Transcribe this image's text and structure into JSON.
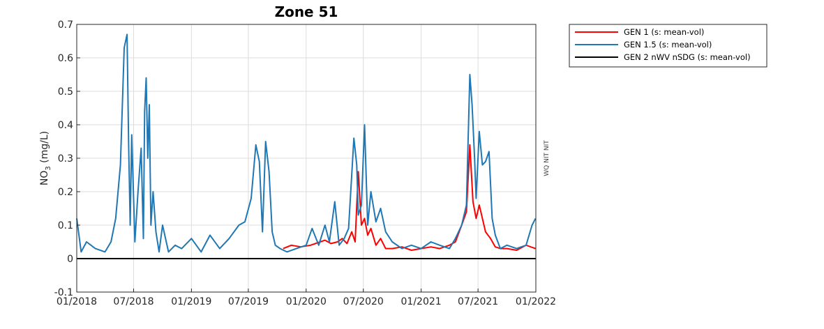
{
  "chart_data": {
    "type": "line",
    "title": "Zone 51",
    "xlabel": "",
    "ylabel_main": "NO",
    "ylabel_sub": "3",
    "ylabel_unit": " (mg/L)",
    "side_label": "WQ NIT NIT",
    "ylim": [
      -0.1,
      0.7
    ],
    "yticks": [
      -0.1,
      0,
      0.1,
      0.2,
      0.3,
      0.4,
      0.5,
      0.6,
      0.7
    ],
    "ytick_labels": [
      "-0.1",
      "0",
      "0.1",
      "0.2",
      "0.3",
      "0.4",
      "0.5",
      "0.6",
      "0.7"
    ],
    "xlim": [
      "2018-01-01",
      "2022-01-01"
    ],
    "xticks": [
      "2018-01-01",
      "2018-07-01",
      "2019-01-01",
      "2019-07-01",
      "2020-01-01",
      "2020-07-01",
      "2021-01-01",
      "2021-07-01",
      "2022-01-01"
    ],
    "xtick_labels": [
      "01/2018",
      "07/2018",
      "01/2019",
      "07/2019",
      "01/2020",
      "07/2020",
      "01/2021",
      "07/2021",
      "01/2022"
    ],
    "grid": true,
    "legend_position": "outside-top-right",
    "series": [
      {
        "name": "GEN 1 (s: mean-vol)",
        "color": "#ff0000",
        "x": [
          "2019-10-20",
          "2019-11-15",
          "2019-12-15",
          "2020-01-15",
          "2020-02-15",
          "2020-03-01",
          "2020-03-20",
          "2020-04-10",
          "2020-04-25",
          "2020-05-10",
          "2020-05-25",
          "2020-06-05",
          "2020-06-15",
          "2020-06-25",
          "2020-07-05",
          "2020-07-15",
          "2020-07-25",
          "2020-08-10",
          "2020-08-25",
          "2020-09-10",
          "2020-10-01",
          "2020-11-01",
          "2020-12-01",
          "2021-01-01",
          "2021-02-01",
          "2021-03-01",
          "2021-04-01",
          "2021-04-20",
          "2021-05-10",
          "2021-05-25",
          "2021-06-05",
          "2021-06-15",
          "2021-06-25",
          "2021-07-05",
          "2021-07-15",
          "2021-07-25",
          "2021-08-10",
          "2021-08-25",
          "2021-09-10",
          "2021-10-01",
          "2021-11-01",
          "2021-12-01",
          "2021-12-31"
        ],
        "y": [
          0.03,
          0.04,
          0.035,
          0.04,
          0.05,
          0.055,
          0.045,
          0.05,
          0.06,
          0.045,
          0.08,
          0.05,
          0.26,
          0.1,
          0.12,
          0.07,
          0.09,
          0.04,
          0.06,
          0.03,
          0.03,
          0.035,
          0.025,
          0.03,
          0.035,
          0.03,
          0.04,
          0.05,
          0.1,
          0.14,
          0.34,
          0.17,
          0.12,
          0.16,
          0.12,
          0.08,
          0.06,
          0.035,
          0.03,
          0.03,
          0.025,
          0.04,
          0.03
        ]
      },
      {
        "name": "GEN 1.5 (s: mean-vol)",
        "color": "#1f77b4",
        "x": [
          "2018-01-01",
          "2018-01-15",
          "2018-02-01",
          "2018-03-01",
          "2018-04-01",
          "2018-04-20",
          "2018-05-05",
          "2018-05-20",
          "2018-06-01",
          "2018-06-10",
          "2018-06-15",
          "2018-06-20",
          "2018-06-25",
          "2018-07-05",
          "2018-07-15",
          "2018-07-25",
          "2018-08-01",
          "2018-08-05",
          "2018-08-10",
          "2018-08-15",
          "2018-08-20",
          "2018-08-25",
          "2018-09-01",
          "2018-09-10",
          "2018-09-20",
          "2018-10-01",
          "2018-10-20",
          "2018-11-10",
          "2018-12-01",
          "2019-01-01",
          "2019-02-01",
          "2019-03-01",
          "2019-04-01",
          "2019-05-01",
          "2019-06-01",
          "2019-06-20",
          "2019-07-10",
          "2019-07-25",
          "2019-08-05",
          "2019-08-15",
          "2019-08-25",
          "2019-09-05",
          "2019-09-15",
          "2019-09-25",
          "2019-10-10",
          "2019-11-01",
          "2019-12-01",
          "2020-01-01",
          "2020-01-20",
          "2020-02-10",
          "2020-03-01",
          "2020-03-15",
          "2020-04-01",
          "2020-04-15",
          "2020-05-01",
          "2020-05-15",
          "2020-06-01",
          "2020-06-10",
          "2020-06-15",
          "2020-06-25",
          "2020-07-05",
          "2020-07-15",
          "2020-07-25",
          "2020-08-10",
          "2020-08-25",
          "2020-09-10",
          "2020-10-01",
          "2020-11-01",
          "2020-12-01",
          "2021-01-01",
          "2021-02-01",
          "2021-03-01",
          "2021-04-01",
          "2021-04-20",
          "2021-05-10",
          "2021-05-25",
          "2021-06-05",
          "2021-06-12",
          "2021-06-20",
          "2021-06-25",
          "2021-07-05",
          "2021-07-15",
          "2021-07-25",
          "2021-08-05",
          "2021-08-15",
          "2021-08-25",
          "2021-09-10",
          "2021-10-01",
          "2021-11-01",
          "2021-12-01",
          "2021-12-20",
          "2021-12-31"
        ],
        "y": [
          0.12,
          0.02,
          0.05,
          0.03,
          0.02,
          0.05,
          0.12,
          0.28,
          0.63,
          0.67,
          0.35,
          0.1,
          0.37,
          0.05,
          0.2,
          0.33,
          0.06,
          0.44,
          0.54,
          0.3,
          0.46,
          0.1,
          0.2,
          0.08,
          0.02,
          0.1,
          0.02,
          0.04,
          0.03,
          0.06,
          0.02,
          0.07,
          0.03,
          0.06,
          0.1,
          0.11,
          0.18,
          0.34,
          0.29,
          0.08,
          0.35,
          0.26,
          0.08,
          0.04,
          0.03,
          0.02,
          0.03,
          0.04,
          0.09,
          0.04,
          0.1,
          0.05,
          0.17,
          0.04,
          0.06,
          0.09,
          0.36,
          0.28,
          0.13,
          0.16,
          0.4,
          0.1,
          0.2,
          0.11,
          0.15,
          0.08,
          0.05,
          0.03,
          0.04,
          0.03,
          0.05,
          0.04,
          0.03,
          0.06,
          0.1,
          0.16,
          0.55,
          0.46,
          0.3,
          0.18,
          0.38,
          0.28,
          0.29,
          0.32,
          0.12,
          0.07,
          0.03,
          0.04,
          0.03,
          0.04,
          0.1,
          0.12
        ]
      },
      {
        "name": "GEN 2 nWV nSDG (s: mean-vol)",
        "color": "#000000",
        "x": [
          "2018-01-01",
          "2022-01-01"
        ],
        "y": [
          0,
          0
        ]
      }
    ]
  }
}
